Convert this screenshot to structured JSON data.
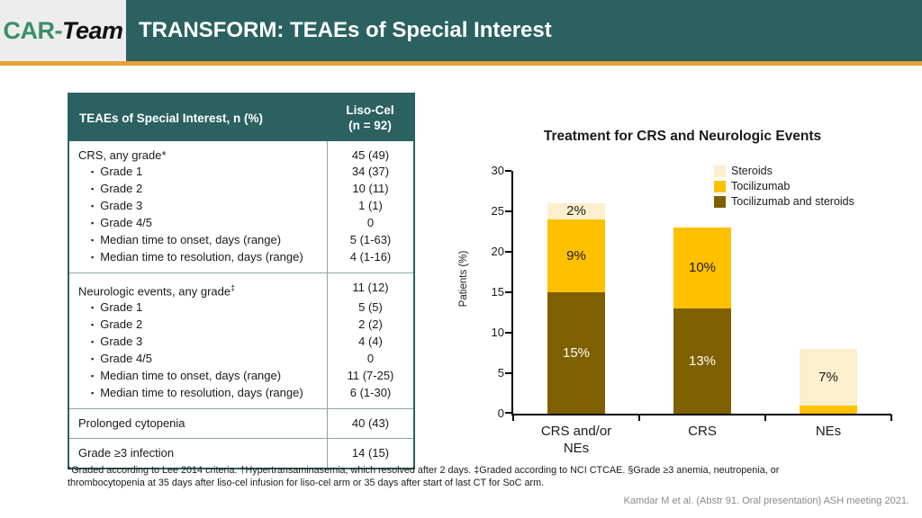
{
  "header": {
    "logo_green": "CAR-",
    "logo_dark": "Team",
    "title": "TRANSFORM: TEAEs of Special Interest"
  },
  "colors": {
    "teal": "#2B6161",
    "accent_orange": "#E4A23C",
    "logo_green": "#3C8D6A",
    "logo_background": "#EDEDED",
    "steroids": "#FBEFCE",
    "tocilizumab": "#FFC000",
    "tocilizumab_and_steroids": "#7F6000",
    "table_border": "#8AA8A8",
    "citation_gray": "#898989"
  },
  "table": {
    "header_label": "TEAEs of Special Interest, n (%)",
    "header_col2_line1": "Liso-Cel",
    "header_col2_line2": "(n = 92)",
    "sections": [
      {
        "rows": [
          {
            "label": "CRS, any grade*",
            "value": "45 (49)",
            "indent": false
          },
          {
            "label": "Grade 1",
            "value": "34 (37)",
            "indent": true
          },
          {
            "label": "Grade 2",
            "value": "10 (11)",
            "indent": true
          },
          {
            "label": "Grade 3",
            "value": "1 (1)",
            "indent": true
          },
          {
            "label": "Grade 4/5",
            "value": "0",
            "indent": true
          },
          {
            "label": "Median time to onset, days (range)",
            "value": "5 (1-63)",
            "indent": true
          },
          {
            "label": "Median time to resolution, days (range)",
            "value": "4 (1-16)",
            "indent": true
          }
        ]
      },
      {
        "rows": [
          {
            "label": "Neurologic events, any grade‡",
            "value": "11 (12)",
            "indent": false
          },
          {
            "label": "Grade 1",
            "value": "5 (5)",
            "indent": true
          },
          {
            "label": "Grade 2",
            "value": "2 (2)",
            "indent": true
          },
          {
            "label": "Grade 3",
            "value": "4 (4)",
            "indent": true
          },
          {
            "label": "Grade 4/5",
            "value": "0",
            "indent": true
          },
          {
            "label": "Median time to onset, days (range)",
            "value": "11 (7-25)",
            "indent": true
          },
          {
            "label": "Median time to resolution, days (range)",
            "value": "6 (1-30)",
            "indent": true
          }
        ]
      },
      {
        "rows": [
          {
            "label": "Prolonged cytopenia",
            "value": "40 (43)",
            "indent": false
          }
        ]
      },
      {
        "rows": [
          {
            "label": "Grade ≥3 infection",
            "value": "14 (15)",
            "indent": false
          }
        ]
      }
    ]
  },
  "chart_data": {
    "type": "bar",
    "stacked": true,
    "title": "Treatment for CRS and Neurologic Events",
    "xlabel": "",
    "ylabel": "Patients (%)",
    "ylim": [
      0,
      30
    ],
    "yticks": [
      0,
      5,
      10,
      15,
      20,
      25,
      30
    ],
    "categories": [
      "CRS and/or NEs",
      "CRS",
      "NEs"
    ],
    "category_display": [
      "CRS and/or\nNEs",
      "CRS",
      "NEs"
    ],
    "series": [
      {
        "name": "Tocilizumab and steroids",
        "color": "#7F6000",
        "label_color": "#FFFFFF",
        "values": [
          15,
          13,
          0
        ]
      },
      {
        "name": "Tocilizumab",
        "color": "#FFC000",
        "label_color": "#1A1A1A",
        "values": [
          9,
          10,
          1
        ]
      },
      {
        "name": "Steroids",
        "color": "#FBEFCE",
        "label_color": "#1A1A1A",
        "values": [
          2,
          0,
          7
        ]
      }
    ],
    "value_suffix": "%",
    "legend_position": "top-right",
    "legend_order": [
      "Steroids",
      "Tocilizumab",
      "Tocilizumab and steroids"
    ],
    "grid": false
  },
  "footnote": "*Graded according to Lee 2014 criteria. †Hypertransaminasemia, which resolved after 2 days. ‡Graded according to NCI CTCAE. §Grade ≥3 anemia, neutropenia, or thrombocytopenia at 35 days after liso-cel infusion for liso-cel arm or 35 days after start of last CT for SoC arm.",
  "citation": "Kamdar M et al. (Abstr 91. Oral presentation) ASH meeting 2021."
}
